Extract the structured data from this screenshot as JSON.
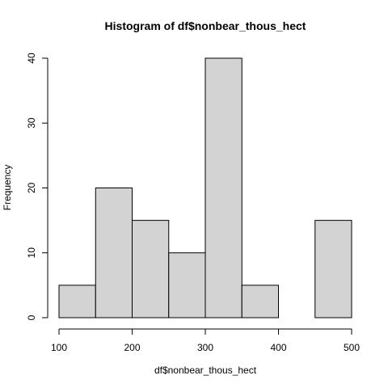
{
  "chart_data": {
    "type": "bar",
    "title": "Histogram of df$nonbear_thous_hect",
    "xlabel": "df$nonbear_thous_hect",
    "ylabel": "Frequency",
    "bins": [
      {
        "from": 100,
        "to": 150,
        "count": 5
      },
      {
        "from": 150,
        "to": 200,
        "count": 20
      },
      {
        "from": 200,
        "to": 250,
        "count": 15
      },
      {
        "from": 250,
        "to": 300,
        "count": 10
      },
      {
        "from": 300,
        "to": 350,
        "count": 40
      },
      {
        "from": 350,
        "to": 400,
        "count": 5
      },
      {
        "from": 400,
        "to": 450,
        "count": 0
      },
      {
        "from": 450,
        "to": 500,
        "count": 15
      }
    ],
    "xlim": [
      100,
      500
    ],
    "ylim": [
      0,
      40
    ],
    "x_ticks": [
      100,
      200,
      300,
      400,
      500
    ],
    "y_ticks": [
      0,
      10,
      20,
      30,
      40
    ],
    "bar_fill": "#d3d3d3",
    "bar_stroke": "#000000",
    "grid": false,
    "legend": "none"
  }
}
